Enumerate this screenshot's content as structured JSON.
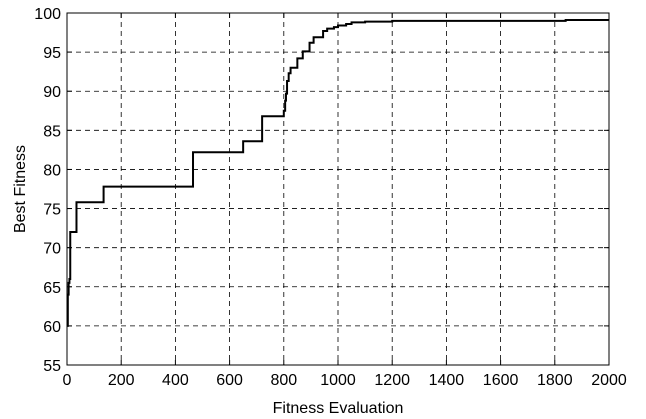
{
  "chart_data": {
    "type": "line",
    "title": "",
    "xlabel": "Fitness Evaluation",
    "ylabel": "Best Fitness",
    "xlim": [
      0,
      2000
    ],
    "ylim": [
      55,
      100
    ],
    "xticks": [
      0,
      200,
      400,
      600,
      800,
      1000,
      1200,
      1400,
      1600,
      1800,
      2000
    ],
    "yticks": [
      55,
      60,
      65,
      70,
      75,
      80,
      85,
      90,
      95,
      100
    ],
    "grid": true,
    "legend": "none",
    "line_style": "step",
    "series": [
      {
        "color": "#000000",
        "x": [
          0,
          3,
          6,
          9,
          12,
          16,
          20,
          35,
          135,
          465,
          650,
          720,
          800,
          805,
          808,
          812,
          818,
          825,
          850,
          870,
          895,
          910,
          945,
          960,
          985,
          1000,
          1030,
          1050,
          1100,
          1200,
          1840,
          2000
        ],
        "y": [
          60,
          64,
          65.5,
          66,
          72,
          72,
          72,
          75.8,
          77.8,
          82.2,
          83.6,
          86.8,
          87.5,
          88.8,
          89.7,
          91.3,
          92.3,
          93,
          94.2,
          95.1,
          96.2,
          96.9,
          97.7,
          98,
          98.2,
          98.4,
          98.6,
          98.8,
          98.9,
          99,
          99.1,
          99.1
        ]
      }
    ]
  }
}
